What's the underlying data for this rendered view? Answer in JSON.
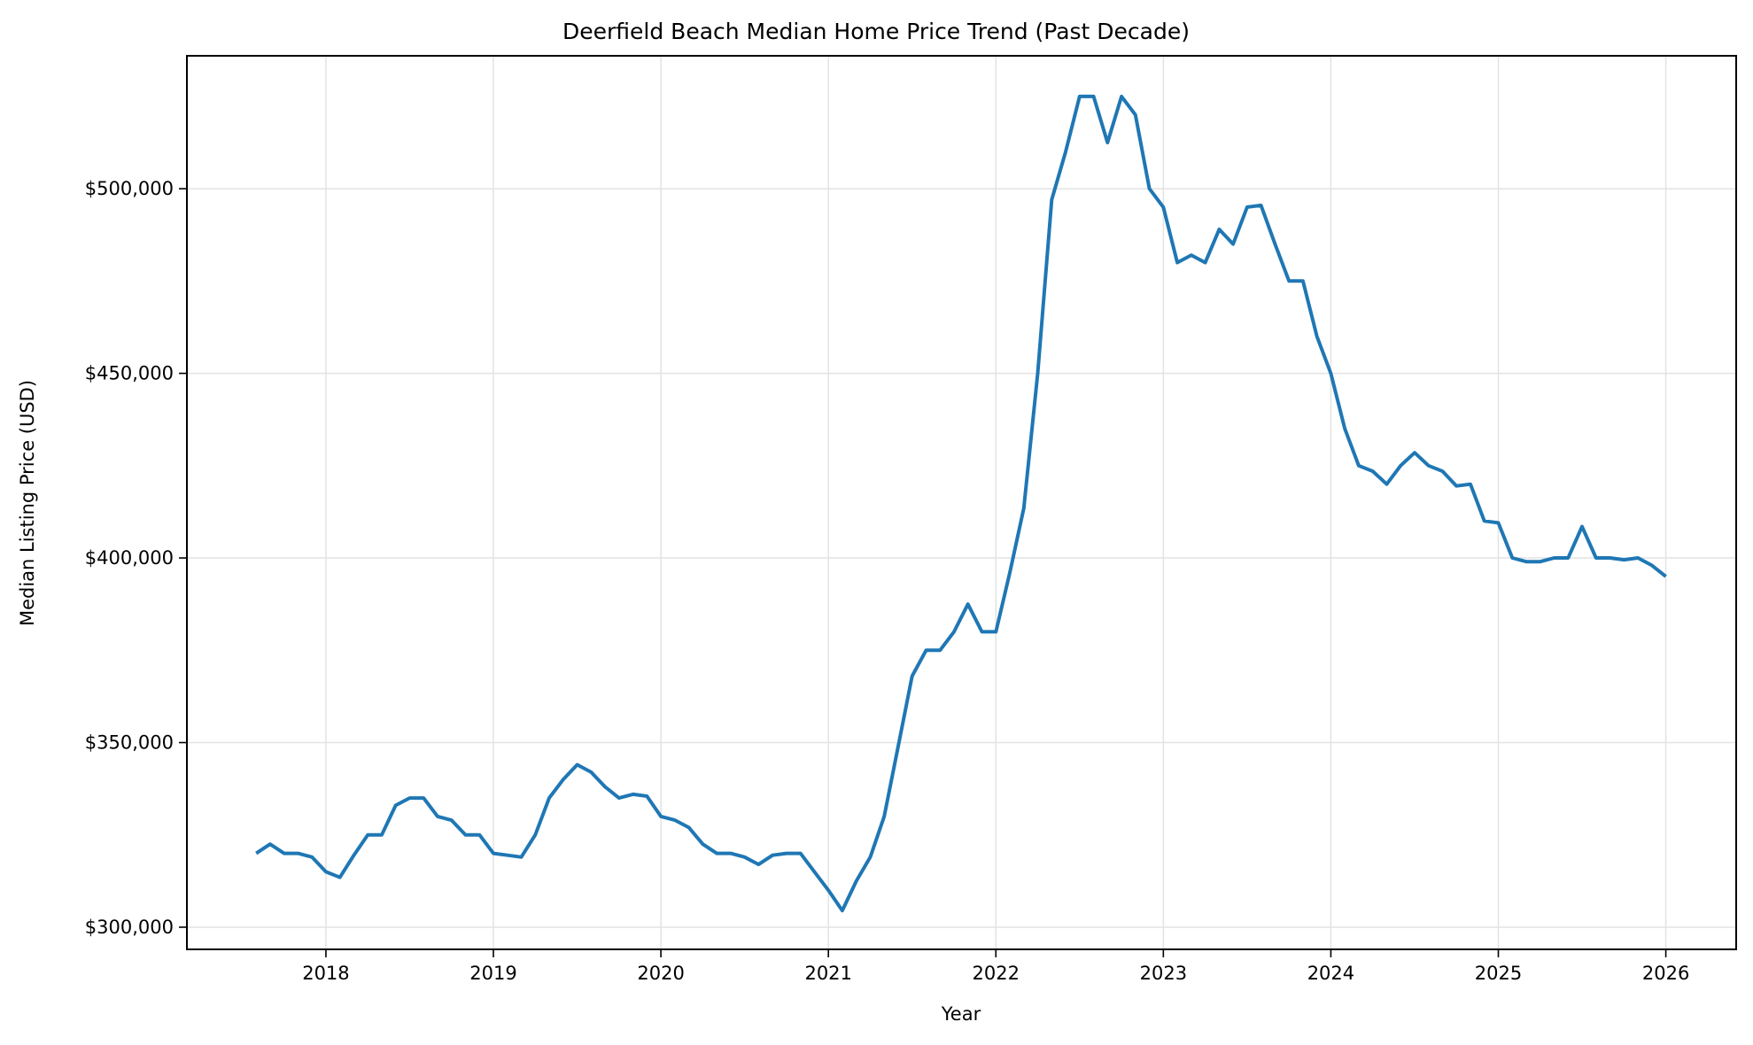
{
  "chart_data": {
    "type": "line",
    "title": "Deerfield Beach Median Home Price Trend (Past Decade)",
    "xlabel": "Year",
    "ylabel": "Median Listing Price (USD)",
    "xlim": [
      2017.17,
      2026.42
    ],
    "ylim": [
      294000,
      536000
    ],
    "grid": true,
    "legend": null,
    "x_ticks": [
      "2018",
      "2019",
      "2020",
      "2021",
      "2022",
      "2023",
      "2024",
      "2025",
      "2026"
    ],
    "y_ticks": [
      {
        "value": 300000,
        "label": "$300,000"
      },
      {
        "value": 350000,
        "label": "$350,000"
      },
      {
        "value": 400000,
        "label": "$400,000"
      },
      {
        "value": 450000,
        "label": "$450,000"
      },
      {
        "value": 500000,
        "label": "$500,000"
      }
    ],
    "series": [
      {
        "name": "Median Listing Price",
        "color": "#1f77b4",
        "x": [
          "2017-08",
          "2017-09",
          "2017-10",
          "2017-11",
          "2017-12",
          "2018-01",
          "2018-02",
          "2018-03",
          "2018-04",
          "2018-05",
          "2018-06",
          "2018-07",
          "2018-08",
          "2018-09",
          "2018-10",
          "2018-11",
          "2018-12",
          "2019-01",
          "2019-02",
          "2019-03",
          "2019-04",
          "2019-05",
          "2019-06",
          "2019-07",
          "2019-08",
          "2019-09",
          "2019-10",
          "2019-11",
          "2019-12",
          "2020-01",
          "2020-02",
          "2020-03",
          "2020-04",
          "2020-05",
          "2020-06",
          "2020-07",
          "2020-08",
          "2020-09",
          "2020-10",
          "2020-11",
          "2020-12",
          "2021-01",
          "2021-02",
          "2021-03",
          "2021-04",
          "2021-05",
          "2021-06",
          "2021-07",
          "2021-08",
          "2021-09",
          "2021-10",
          "2021-11",
          "2021-12",
          "2022-01",
          "2022-02",
          "2022-03",
          "2022-04",
          "2022-05",
          "2022-06",
          "2022-07",
          "2022-08",
          "2022-09",
          "2022-10",
          "2022-11",
          "2022-12",
          "2023-01",
          "2023-02",
          "2023-03",
          "2023-04",
          "2023-05",
          "2023-06",
          "2023-07",
          "2023-08",
          "2023-09",
          "2023-10",
          "2023-11",
          "2023-12",
          "2024-01",
          "2024-02",
          "2024-03",
          "2024-04",
          "2024-05",
          "2024-06",
          "2024-07",
          "2024-08",
          "2024-09",
          "2024-10",
          "2024-11",
          "2024-12",
          "2025-01",
          "2025-02",
          "2025-03",
          "2025-04",
          "2025-05",
          "2025-06",
          "2025-07",
          "2025-08",
          "2025-09",
          "2025-10",
          "2025-11",
          "2025-12",
          "2026-01"
        ],
        "values": [
          320000,
          322500,
          320000,
          320000,
          319000,
          315000,
          313500,
          319500,
          325000,
          325000,
          333000,
          335000,
          335000,
          330000,
          329000,
          325000,
          325000,
          320000,
          319500,
          319000,
          325000,
          335000,
          340000,
          344000,
          342000,
          338000,
          335000,
          336000,
          335500,
          330000,
          329000,
          327000,
          322500,
          320000,
          320000,
          319000,
          317000,
          319500,
          320000,
          320000,
          315000,
          310000,
          304500,
          312500,
          319000,
          330000,
          349000,
          368000,
          375000,
          375000,
          380000,
          387500,
          380000,
          380000,
          396000,
          413500,
          450000,
          497000,
          510000,
          525000,
          525000,
          512500,
          525000,
          520000,
          500000,
          495000,
          480000,
          482000,
          480000,
          489000,
          485000,
          495000,
          495500,
          485000,
          475000,
          475000,
          460000,
          450000,
          435000,
          425000,
          423500,
          420000,
          425000,
          428500,
          425000,
          423500,
          419500,
          420000,
          410000,
          409500,
          400000,
          399000,
          399000,
          400000,
          400000,
          408500,
          400000,
          400000,
          399500,
          400000,
          398000,
          395000
        ]
      }
    ]
  }
}
